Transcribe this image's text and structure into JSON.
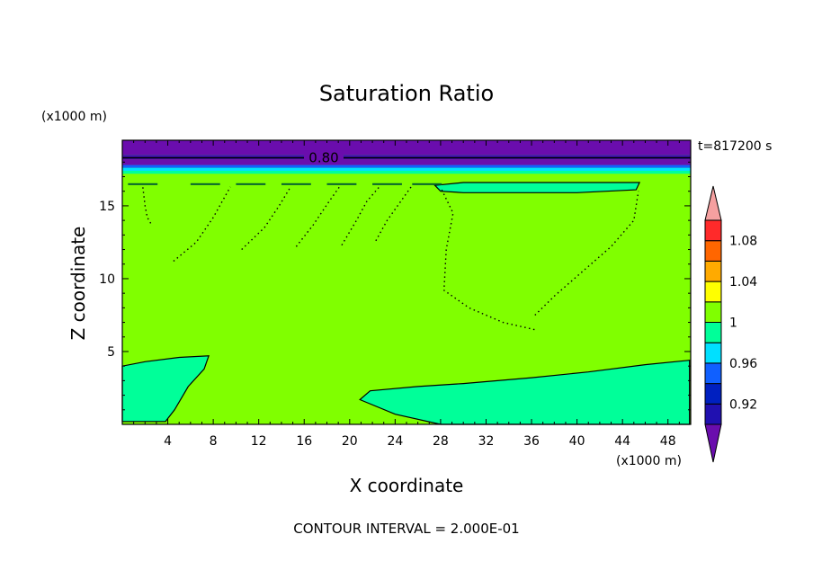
{
  "chart_data": {
    "type": "heatmap",
    "title": "Saturation Ratio",
    "xlabel": "X coordinate",
    "ylabel": "Z coordinate",
    "x_units": "(x1000 m)",
    "y_units": "(x1000 m)",
    "time_label": "t=817200 s",
    "footer": "CONTOUR INTERVAL = 2.000E-01",
    "xlim": [
      0,
      50
    ],
    "ylim": [
      0,
      19.5
    ],
    "x_ticks": [
      "4",
      "8",
      "12",
      "16",
      "20",
      "24",
      "28",
      "32",
      "36",
      "40",
      "44",
      "48"
    ],
    "x_tick_values": [
      4,
      8,
      12,
      16,
      20,
      24,
      28,
      32,
      36,
      40,
      44,
      48
    ],
    "y_ticks": [
      "5",
      "10",
      "15"
    ],
    "y_tick_values": [
      5,
      10,
      15
    ],
    "contour_label": "0.80",
    "contour_label_z": 18.3,
    "colorbar": {
      "min": 0.9,
      "max": 1.1,
      "step": 0.02,
      "labels": [
        "0.92",
        "0.96",
        "1",
        "1.04",
        "1.08"
      ],
      "label_values": [
        0.92,
        0.96,
        1.0,
        1.04,
        1.08
      ],
      "colors": [
        "#6a0dad",
        "#2010b0",
        "#0020c0",
        "#1060ff",
        "#00e0ff",
        "#00ff99",
        "#80ff00",
        "#ffff00",
        "#ffaa00",
        "#ff6600",
        "#ff2a2a",
        "#f5a0a0"
      ]
    },
    "fill_colors": {
      "background": "#80ff00",
      "moist": "#00ff99",
      "dry_top": "#6a0dad",
      "dry_band": "#4010b0",
      "band_cyan": "#00e0ff",
      "band_blue": "#1060ff"
    },
    "regions": [
      {
        "name": "lower-left-pocket",
        "level": "0.98-1.00",
        "points": [
          [
            0,
            0.2
          ],
          [
            0,
            4.0
          ],
          [
            2,
            4.3
          ],
          [
            5,
            4.6
          ],
          [
            7.6,
            4.7
          ],
          [
            7.2,
            3.8
          ],
          [
            5.8,
            2.6
          ],
          [
            4.6,
            1.0
          ],
          [
            3.8,
            0.2
          ]
        ]
      },
      {
        "name": "lower-right-pocket",
        "level": "0.98-1.00",
        "points": [
          [
            20.9,
            1.7
          ],
          [
            21.8,
            2.3
          ],
          [
            26,
            2.6
          ],
          [
            30,
            2.8
          ],
          [
            36,
            3.2
          ],
          [
            41,
            3.6
          ],
          [
            46,
            4.1
          ],
          [
            49.9,
            4.4
          ],
          [
            49.9,
            0
          ],
          [
            28,
            0
          ],
          [
            24,
            0.7
          ]
        ]
      },
      {
        "name": "upper-right-sliver",
        "level": "0.98-1.00",
        "points": [
          [
            27.5,
            16.4
          ],
          [
            30,
            16.6
          ],
          [
            38,
            16.6
          ],
          [
            45.5,
            16.6
          ],
          [
            45.2,
            16.1
          ],
          [
            40,
            15.9
          ],
          [
            30,
            15.9
          ],
          [
            28,
            16.0
          ]
        ]
      }
    ],
    "dotted_contours": [
      {
        "points": [
          [
            2.5,
            13.8
          ],
          [
            2.2,
            14.2
          ],
          [
            2.0,
            15.0
          ],
          [
            1.8,
            16.3
          ]
        ]
      },
      {
        "points": [
          [
            4.5,
            11.2
          ],
          [
            6.5,
            12.5
          ],
          [
            8,
            14.2
          ],
          [
            9.5,
            16.3
          ]
        ]
      },
      {
        "points": [
          [
            10.5,
            12.0
          ],
          [
            12.5,
            13.5
          ],
          [
            13.8,
            15.0
          ],
          [
            14.8,
            16.3
          ]
        ]
      },
      {
        "points": [
          [
            15.3,
            12.2
          ],
          [
            16.8,
            13.7
          ],
          [
            18.1,
            15.2
          ],
          [
            19.1,
            16.3
          ]
        ]
      },
      {
        "points": [
          [
            19.3,
            12.3
          ],
          [
            20.6,
            14.0
          ],
          [
            21.5,
            15.3
          ],
          [
            22.6,
            16.3
          ]
        ]
      },
      {
        "points": [
          [
            22.3,
            12.6
          ],
          [
            23.3,
            14.0
          ],
          [
            24.4,
            15.2
          ],
          [
            25.4,
            16.3
          ]
        ]
      },
      {
        "points": [
          [
            28.1,
            16.1
          ],
          [
            29.1,
            14.5
          ],
          [
            28.5,
            12.0
          ],
          [
            28.3,
            9.2
          ],
          [
            30.5,
            8.0
          ],
          [
            33.5,
            7.0
          ],
          [
            36.3,
            6.5
          ]
        ]
      },
      {
        "points": [
          [
            36.3,
            7.5
          ],
          [
            38,
            8.8
          ],
          [
            40.5,
            10.5
          ],
          [
            43,
            12.2
          ],
          [
            45,
            14.0
          ],
          [
            45.4,
            16.0
          ]
        ]
      }
    ]
  }
}
